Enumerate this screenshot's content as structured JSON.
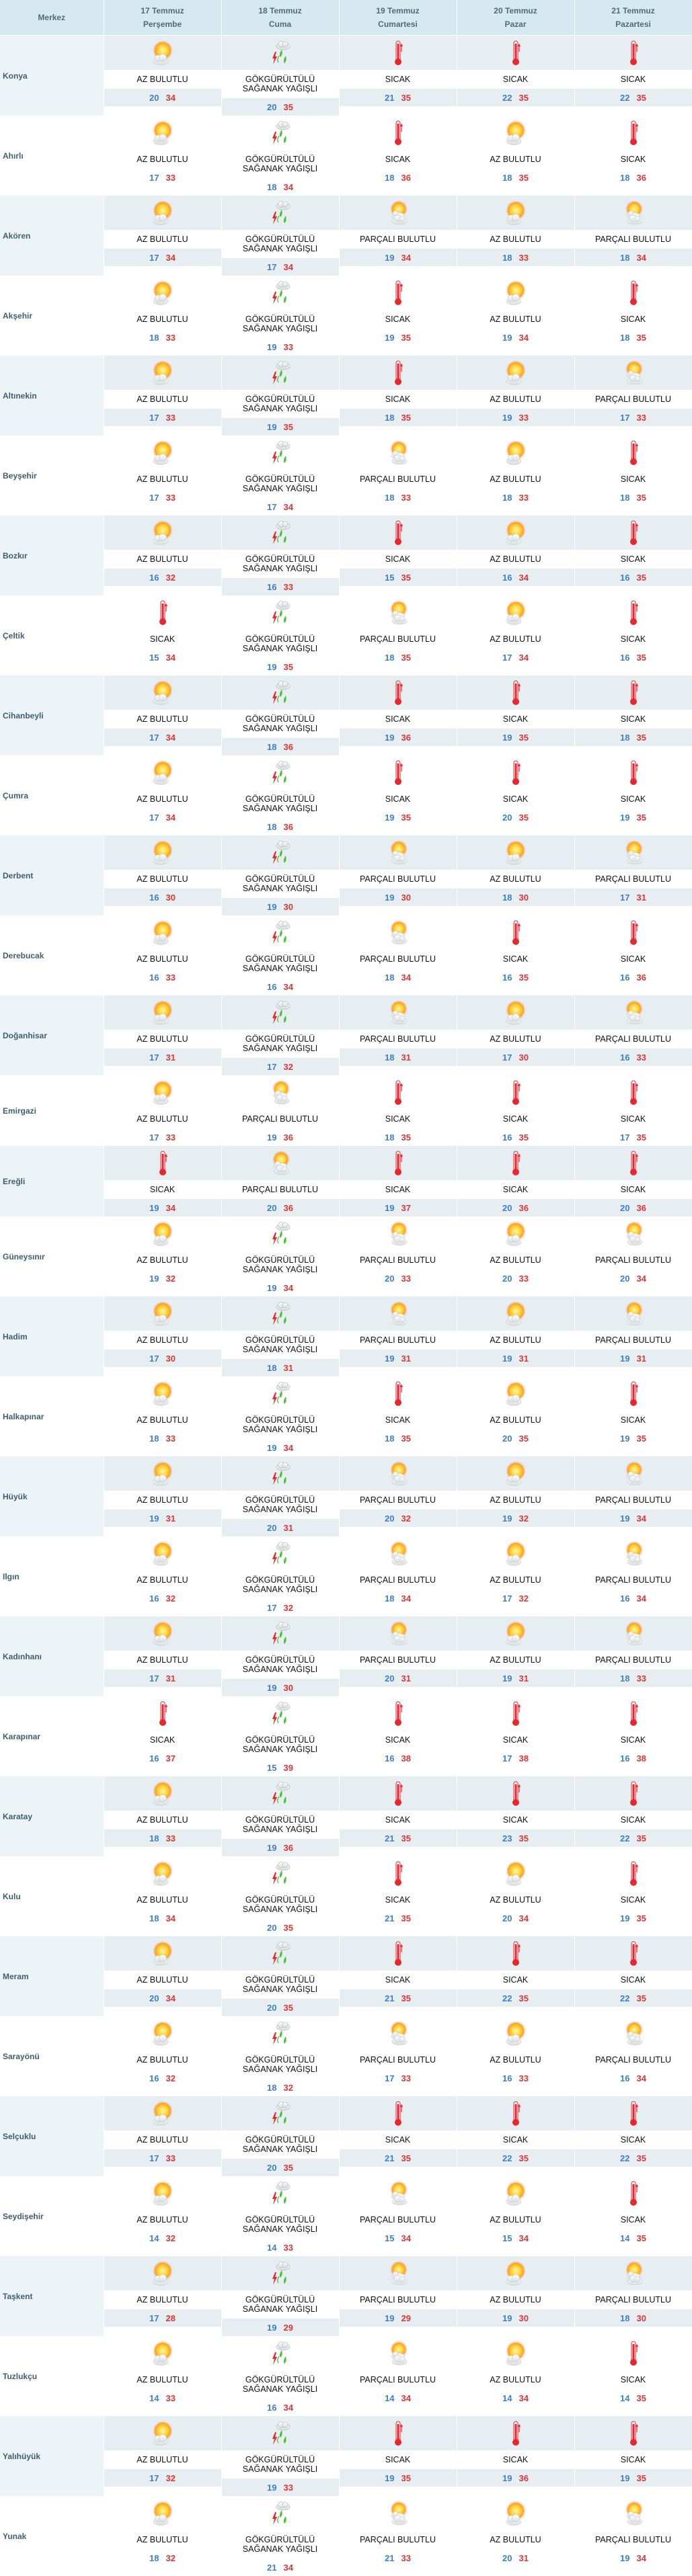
{
  "header": {
    "station_label": "Merkez",
    "days": [
      {
        "date": "17 Temmuz",
        "weekday": "Perşembe"
      },
      {
        "date": "18 Temmuz",
        "weekday": "Cuma"
      },
      {
        "date": "19 Temmuz",
        "weekday": "Cumartesi"
      },
      {
        "date": "20 Temmuz",
        "weekday": "Pazar"
      },
      {
        "date": "21 Temmuz",
        "weekday": "Pazartesi"
      }
    ]
  },
  "condition_icons": {
    "AZ BULUTLU": "sun-cloud",
    "PARÇALI BULUTLU": "partly-cloudy",
    "GÖKGÜRÜLTÜLÜ\nSAĞANAK YAĞIŞLI": "thunderstorm-rain",
    "SICAK": "thermometer-hot"
  },
  "colors": {
    "min_temp": "#3d7fca",
    "max_temp": "#e03535",
    "header_bg": "#d6e9f1"
  },
  "rows": [
    {
      "name": "Konya",
      "days": [
        {
          "condition": "AZ BULUTLU",
          "min": "20",
          "max": "34"
        },
        {
          "condition": "GÖKGÜRÜLTÜLÜ\nSAĞANAK YAĞIŞLI",
          "min": "20",
          "max": "35"
        },
        {
          "condition": "SICAK",
          "min": "21",
          "max": "35"
        },
        {
          "condition": "SICAK",
          "min": "22",
          "max": "35"
        },
        {
          "condition": "SICAK",
          "min": "22",
          "max": "35"
        }
      ]
    },
    {
      "name": "Ahırlı",
      "days": [
        {
          "condition": "AZ BULUTLU",
          "min": "17",
          "max": "33"
        },
        {
          "condition": "GÖKGÜRÜLTÜLÜ\nSAĞANAK YAĞIŞLI",
          "min": "18",
          "max": "34"
        },
        {
          "condition": "SICAK",
          "min": "18",
          "max": "36"
        },
        {
          "condition": "AZ BULUTLU",
          "min": "18",
          "max": "35"
        },
        {
          "condition": "SICAK",
          "min": "18",
          "max": "36"
        }
      ]
    },
    {
      "name": "Akören",
      "days": [
        {
          "condition": "AZ BULUTLU",
          "min": "17",
          "max": "34"
        },
        {
          "condition": "GÖKGÜRÜLTÜLÜ\nSAĞANAK YAĞIŞLI",
          "min": "17",
          "max": "34"
        },
        {
          "condition": "PARÇALI BULUTLU",
          "min": "19",
          "max": "34"
        },
        {
          "condition": "AZ BULUTLU",
          "min": "18",
          "max": "33"
        },
        {
          "condition": "PARÇALI BULUTLU",
          "min": "18",
          "max": "34"
        }
      ]
    },
    {
      "name": "Akşehir",
      "days": [
        {
          "condition": "AZ BULUTLU",
          "min": "18",
          "max": "33"
        },
        {
          "condition": "GÖKGÜRÜLTÜLÜ\nSAĞANAK YAĞIŞLI",
          "min": "19",
          "max": "33"
        },
        {
          "condition": "SICAK",
          "min": "19",
          "max": "35"
        },
        {
          "condition": "AZ BULUTLU",
          "min": "19",
          "max": "34"
        },
        {
          "condition": "SICAK",
          "min": "18",
          "max": "35"
        }
      ]
    },
    {
      "name": "Altınekin",
      "days": [
        {
          "condition": "AZ BULUTLU",
          "min": "17",
          "max": "33"
        },
        {
          "condition": "GÖKGÜRÜLTÜLÜ\nSAĞANAK YAĞIŞLI",
          "min": "19",
          "max": "35"
        },
        {
          "condition": "SICAK",
          "min": "18",
          "max": "35"
        },
        {
          "condition": "AZ BULUTLU",
          "min": "19",
          "max": "33"
        },
        {
          "condition": "PARÇALI BULUTLU",
          "min": "17",
          "max": "33"
        }
      ]
    },
    {
      "name": "Beyşehir",
      "days": [
        {
          "condition": "AZ BULUTLU",
          "min": "17",
          "max": "33"
        },
        {
          "condition": "GÖKGÜRÜLTÜLÜ\nSAĞANAK YAĞIŞLI",
          "min": "17",
          "max": "34"
        },
        {
          "condition": "PARÇALI BULUTLU",
          "min": "18",
          "max": "33"
        },
        {
          "condition": "AZ BULUTLU",
          "min": "18",
          "max": "33"
        },
        {
          "condition": "SICAK",
          "min": "18",
          "max": "35"
        }
      ]
    },
    {
      "name": "Bozkır",
      "days": [
        {
          "condition": "AZ BULUTLU",
          "min": "16",
          "max": "32"
        },
        {
          "condition": "GÖKGÜRÜLTÜLÜ\nSAĞANAK YAĞIŞLI",
          "min": "16",
          "max": "33"
        },
        {
          "condition": "SICAK",
          "min": "15",
          "max": "35"
        },
        {
          "condition": "AZ BULUTLU",
          "min": "16",
          "max": "34"
        },
        {
          "condition": "SICAK",
          "min": "16",
          "max": "35"
        }
      ]
    },
    {
      "name": "Çeltik",
      "days": [
        {
          "condition": "SICAK",
          "min": "15",
          "max": "34"
        },
        {
          "condition": "GÖKGÜRÜLTÜLÜ\nSAĞANAK YAĞIŞLI",
          "min": "19",
          "max": "35"
        },
        {
          "condition": "PARÇALI BULUTLU",
          "min": "18",
          "max": "35"
        },
        {
          "condition": "AZ BULUTLU",
          "min": "17",
          "max": "34"
        },
        {
          "condition": "SICAK",
          "min": "16",
          "max": "35"
        }
      ]
    },
    {
      "name": "Cihanbeyli",
      "days": [
        {
          "condition": "AZ BULUTLU",
          "min": "17",
          "max": "34"
        },
        {
          "condition": "GÖKGÜRÜLTÜLÜ\nSAĞANAK YAĞIŞLI",
          "min": "18",
          "max": "36"
        },
        {
          "condition": "SICAK",
          "min": "19",
          "max": "36"
        },
        {
          "condition": "SICAK",
          "min": "19",
          "max": "35"
        },
        {
          "condition": "SICAK",
          "min": "18",
          "max": "35"
        }
      ]
    },
    {
      "name": "Çumra",
      "days": [
        {
          "condition": "AZ BULUTLU",
          "min": "17",
          "max": "34"
        },
        {
          "condition": "GÖKGÜRÜLTÜLÜ\nSAĞANAK YAĞIŞLI",
          "min": "18",
          "max": "36"
        },
        {
          "condition": "SICAK",
          "min": "19",
          "max": "35"
        },
        {
          "condition": "SICAK",
          "min": "20",
          "max": "35"
        },
        {
          "condition": "SICAK",
          "min": "19",
          "max": "35"
        }
      ]
    },
    {
      "name": "Derbent",
      "days": [
        {
          "condition": "AZ BULUTLU",
          "min": "16",
          "max": "30"
        },
        {
          "condition": "GÖKGÜRÜLTÜLÜ\nSAĞANAK YAĞIŞLI",
          "min": "19",
          "max": "30"
        },
        {
          "condition": "PARÇALI BULUTLU",
          "min": "19",
          "max": "30"
        },
        {
          "condition": "AZ BULUTLU",
          "min": "18",
          "max": "30"
        },
        {
          "condition": "PARÇALI BULUTLU",
          "min": "17",
          "max": "31"
        }
      ]
    },
    {
      "name": "Derebucak",
      "days": [
        {
          "condition": "AZ BULUTLU",
          "min": "16",
          "max": "33"
        },
        {
          "condition": "GÖKGÜRÜLTÜLÜ\nSAĞANAK YAĞIŞLI",
          "min": "16",
          "max": "34"
        },
        {
          "condition": "PARÇALI BULUTLU",
          "min": "18",
          "max": "34"
        },
        {
          "condition": "SICAK",
          "min": "16",
          "max": "35"
        },
        {
          "condition": "SICAK",
          "min": "16",
          "max": "36"
        }
      ]
    },
    {
      "name": "Doğanhisar",
      "days": [
        {
          "condition": "AZ BULUTLU",
          "min": "17",
          "max": "31"
        },
        {
          "condition": "GÖKGÜRÜLTÜLÜ\nSAĞANAK YAĞIŞLI",
          "min": "17",
          "max": "32"
        },
        {
          "condition": "PARÇALI BULUTLU",
          "min": "18",
          "max": "31"
        },
        {
          "condition": "AZ BULUTLU",
          "min": "17",
          "max": "30"
        },
        {
          "condition": "PARÇALI BULUTLU",
          "min": "16",
          "max": "33"
        }
      ]
    },
    {
      "name": "Emirgazi",
      "days": [
        {
          "condition": "AZ BULUTLU",
          "min": "17",
          "max": "33"
        },
        {
          "condition": "PARÇALI BULUTLU",
          "min": "19",
          "max": "36"
        },
        {
          "condition": "SICAK",
          "min": "18",
          "max": "35"
        },
        {
          "condition": "SICAK",
          "min": "16",
          "max": "35"
        },
        {
          "condition": "SICAK",
          "min": "17",
          "max": "35"
        }
      ]
    },
    {
      "name": "Ereğli",
      "days": [
        {
          "condition": "SICAK",
          "min": "19",
          "max": "34"
        },
        {
          "condition": "PARÇALI BULUTLU",
          "min": "20",
          "max": "36"
        },
        {
          "condition": "SICAK",
          "min": "19",
          "max": "37"
        },
        {
          "condition": "SICAK",
          "min": "20",
          "max": "36"
        },
        {
          "condition": "SICAK",
          "min": "20",
          "max": "36"
        }
      ]
    },
    {
      "name": "Güneysınır",
      "days": [
        {
          "condition": "AZ BULUTLU",
          "min": "19",
          "max": "32"
        },
        {
          "condition": "GÖKGÜRÜLTÜLÜ\nSAĞANAK YAĞIŞLI",
          "min": "19",
          "max": "34"
        },
        {
          "condition": "PARÇALI BULUTLU",
          "min": "20",
          "max": "33"
        },
        {
          "condition": "AZ BULUTLU",
          "min": "20",
          "max": "33"
        },
        {
          "condition": "PARÇALI BULUTLU",
          "min": "20",
          "max": "34"
        }
      ]
    },
    {
      "name": "Hadim",
      "days": [
        {
          "condition": "AZ BULUTLU",
          "min": "17",
          "max": "30"
        },
        {
          "condition": "GÖKGÜRÜLTÜLÜ\nSAĞANAK YAĞIŞLI",
          "min": "18",
          "max": "31"
        },
        {
          "condition": "PARÇALI BULUTLU",
          "min": "19",
          "max": "31"
        },
        {
          "condition": "AZ BULUTLU",
          "min": "19",
          "max": "31"
        },
        {
          "condition": "PARÇALI BULUTLU",
          "min": "19",
          "max": "31"
        }
      ]
    },
    {
      "name": "Halkapınar",
      "days": [
        {
          "condition": "AZ BULUTLU",
          "min": "18",
          "max": "33"
        },
        {
          "condition": "GÖKGÜRÜLTÜLÜ\nSAĞANAK YAĞIŞLI",
          "min": "19",
          "max": "34"
        },
        {
          "condition": "SICAK",
          "min": "18",
          "max": "35"
        },
        {
          "condition": "AZ BULUTLU",
          "min": "20",
          "max": "35"
        },
        {
          "condition": "SICAK",
          "min": "19",
          "max": "35"
        }
      ]
    },
    {
      "name": "Hüyük",
      "days": [
        {
          "condition": "AZ BULUTLU",
          "min": "19",
          "max": "31"
        },
        {
          "condition": "GÖKGÜRÜLTÜLÜ\nSAĞANAK YAĞIŞLI",
          "min": "20",
          "max": "31"
        },
        {
          "condition": "PARÇALI BULUTLU",
          "min": "20",
          "max": "32"
        },
        {
          "condition": "AZ BULUTLU",
          "min": "19",
          "max": "32"
        },
        {
          "condition": "PARÇALI BULUTLU",
          "min": "19",
          "max": "34"
        }
      ]
    },
    {
      "name": "Ilgın",
      "days": [
        {
          "condition": "AZ BULUTLU",
          "min": "16",
          "max": "32"
        },
        {
          "condition": "GÖKGÜRÜLTÜLÜ\nSAĞANAK YAĞIŞLI",
          "min": "17",
          "max": "32"
        },
        {
          "condition": "PARÇALI BULUTLU",
          "min": "18",
          "max": "34"
        },
        {
          "condition": "AZ BULUTLU",
          "min": "17",
          "max": "32"
        },
        {
          "condition": "PARÇALI BULUTLU",
          "min": "16",
          "max": "34"
        }
      ]
    },
    {
      "name": "Kadınhanı",
      "days": [
        {
          "condition": "AZ BULUTLU",
          "min": "17",
          "max": "31"
        },
        {
          "condition": "GÖKGÜRÜLTÜLÜ\nSAĞANAK YAĞIŞLI",
          "min": "19",
          "max": "30"
        },
        {
          "condition": "PARÇALI BULUTLU",
          "min": "20",
          "max": "31"
        },
        {
          "condition": "AZ BULUTLU",
          "min": "19",
          "max": "31"
        },
        {
          "condition": "PARÇALI BULUTLU",
          "min": "18",
          "max": "33"
        }
      ]
    },
    {
      "name": "Karapınar",
      "days": [
        {
          "condition": "SICAK",
          "min": "16",
          "max": "37"
        },
        {
          "condition": "GÖKGÜRÜLTÜLÜ\nSAĞANAK YAĞIŞLI",
          "min": "15",
          "max": "39"
        },
        {
          "condition": "SICAK",
          "min": "16",
          "max": "38"
        },
        {
          "condition": "SICAK",
          "min": "17",
          "max": "38"
        },
        {
          "condition": "SICAK",
          "min": "16",
          "max": "38"
        }
      ]
    },
    {
      "name": "Karatay",
      "days": [
        {
          "condition": "AZ BULUTLU",
          "min": "18",
          "max": "33"
        },
        {
          "condition": "GÖKGÜRÜLTÜLÜ\nSAĞANAK YAĞIŞLI",
          "min": "19",
          "max": "36"
        },
        {
          "condition": "SICAK",
          "min": "21",
          "max": "35"
        },
        {
          "condition": "SICAK",
          "min": "23",
          "max": "35"
        },
        {
          "condition": "SICAK",
          "min": "22",
          "max": "35"
        }
      ]
    },
    {
      "name": "Kulu",
      "days": [
        {
          "condition": "AZ BULUTLU",
          "min": "18",
          "max": "34"
        },
        {
          "condition": "GÖKGÜRÜLTÜLÜ\nSAĞANAK YAĞIŞLI",
          "min": "20",
          "max": "35"
        },
        {
          "condition": "SICAK",
          "min": "21",
          "max": "35"
        },
        {
          "condition": "AZ BULUTLU",
          "min": "20",
          "max": "34"
        },
        {
          "condition": "SICAK",
          "min": "19",
          "max": "35"
        }
      ]
    },
    {
      "name": "Meram",
      "days": [
        {
          "condition": "AZ BULUTLU",
          "min": "20",
          "max": "34"
        },
        {
          "condition": "GÖKGÜRÜLTÜLÜ\nSAĞANAK YAĞIŞLI",
          "min": "20",
          "max": "35"
        },
        {
          "condition": "SICAK",
          "min": "21",
          "max": "35"
        },
        {
          "condition": "SICAK",
          "min": "22",
          "max": "35"
        },
        {
          "condition": "SICAK",
          "min": "22",
          "max": "35"
        }
      ]
    },
    {
      "name": "Sarayönü",
      "days": [
        {
          "condition": "AZ BULUTLU",
          "min": "16",
          "max": "32"
        },
        {
          "condition": "GÖKGÜRÜLTÜLÜ\nSAĞANAK YAĞIŞLI",
          "min": "18",
          "max": "32"
        },
        {
          "condition": "PARÇALI BULUTLU",
          "min": "17",
          "max": "33"
        },
        {
          "condition": "AZ BULUTLU",
          "min": "16",
          "max": "33"
        },
        {
          "condition": "PARÇALI BULUTLU",
          "min": "16",
          "max": "34"
        }
      ]
    },
    {
      "name": "Selçuklu",
      "days": [
        {
          "condition": "AZ BULUTLU",
          "min": "17",
          "max": "33"
        },
        {
          "condition": "GÖKGÜRÜLTÜLÜ\nSAĞANAK YAĞIŞLI",
          "min": "20",
          "max": "35"
        },
        {
          "condition": "SICAK",
          "min": "21",
          "max": "35"
        },
        {
          "condition": "SICAK",
          "min": "22",
          "max": "35"
        },
        {
          "condition": "SICAK",
          "min": "22",
          "max": "35"
        }
      ]
    },
    {
      "name": "Seydişehir",
      "days": [
        {
          "condition": "AZ BULUTLU",
          "min": "14",
          "max": "32"
        },
        {
          "condition": "GÖKGÜRÜLTÜLÜ\nSAĞANAK YAĞIŞLI",
          "min": "14",
          "max": "33"
        },
        {
          "condition": "PARÇALI BULUTLU",
          "min": "15",
          "max": "34"
        },
        {
          "condition": "AZ BULUTLU",
          "min": "15",
          "max": "34"
        },
        {
          "condition": "SICAK",
          "min": "14",
          "max": "35"
        }
      ]
    },
    {
      "name": "Taşkent",
      "days": [
        {
          "condition": "AZ BULUTLU",
          "min": "17",
          "max": "28"
        },
        {
          "condition": "GÖKGÜRÜLTÜLÜ\nSAĞANAK YAĞIŞLI",
          "min": "19",
          "max": "29"
        },
        {
          "condition": "PARÇALI BULUTLU",
          "min": "19",
          "max": "29"
        },
        {
          "condition": "AZ BULUTLU",
          "min": "19",
          "max": "30"
        },
        {
          "condition": "PARÇALI BULUTLU",
          "min": "18",
          "max": "30"
        }
      ]
    },
    {
      "name": "Tuzlukçu",
      "days": [
        {
          "condition": "AZ BULUTLU",
          "min": "14",
          "max": "33"
        },
        {
          "condition": "GÖKGÜRÜLTÜLÜ\nSAĞANAK YAĞIŞLI",
          "min": "16",
          "max": "34"
        },
        {
          "condition": "PARÇALI BULUTLU",
          "min": "14",
          "max": "34"
        },
        {
          "condition": "AZ BULUTLU",
          "min": "14",
          "max": "34"
        },
        {
          "condition": "SICAK",
          "min": "14",
          "max": "35"
        }
      ]
    },
    {
      "name": "Yalıhüyük",
      "days": [
        {
          "condition": "AZ BULUTLU",
          "min": "17",
          "max": "32"
        },
        {
          "condition": "GÖKGÜRÜLTÜLÜ\nSAĞANAK YAĞIŞLI",
          "min": "19",
          "max": "33"
        },
        {
          "condition": "SICAK",
          "min": "19",
          "max": "35"
        },
        {
          "condition": "SICAK",
          "min": "19",
          "max": "36"
        },
        {
          "condition": "SICAK",
          "min": "19",
          "max": "35"
        }
      ]
    },
    {
      "name": "Yunak",
      "days": [
        {
          "condition": "AZ BULUTLU",
          "min": "18",
          "max": "32"
        },
        {
          "condition": "GÖKGÜRÜLTÜLÜ\nSAĞANAK YAĞIŞLI",
          "min": "21",
          "max": "34"
        },
        {
          "condition": "PARÇALI BULUTLU",
          "min": "21",
          "max": "33"
        },
        {
          "condition": "AZ BULUTLU",
          "min": "20",
          "max": "31"
        },
        {
          "condition": "PARÇALI BULUTLU",
          "min": "19",
          "max": "34"
        }
      ]
    }
  ]
}
